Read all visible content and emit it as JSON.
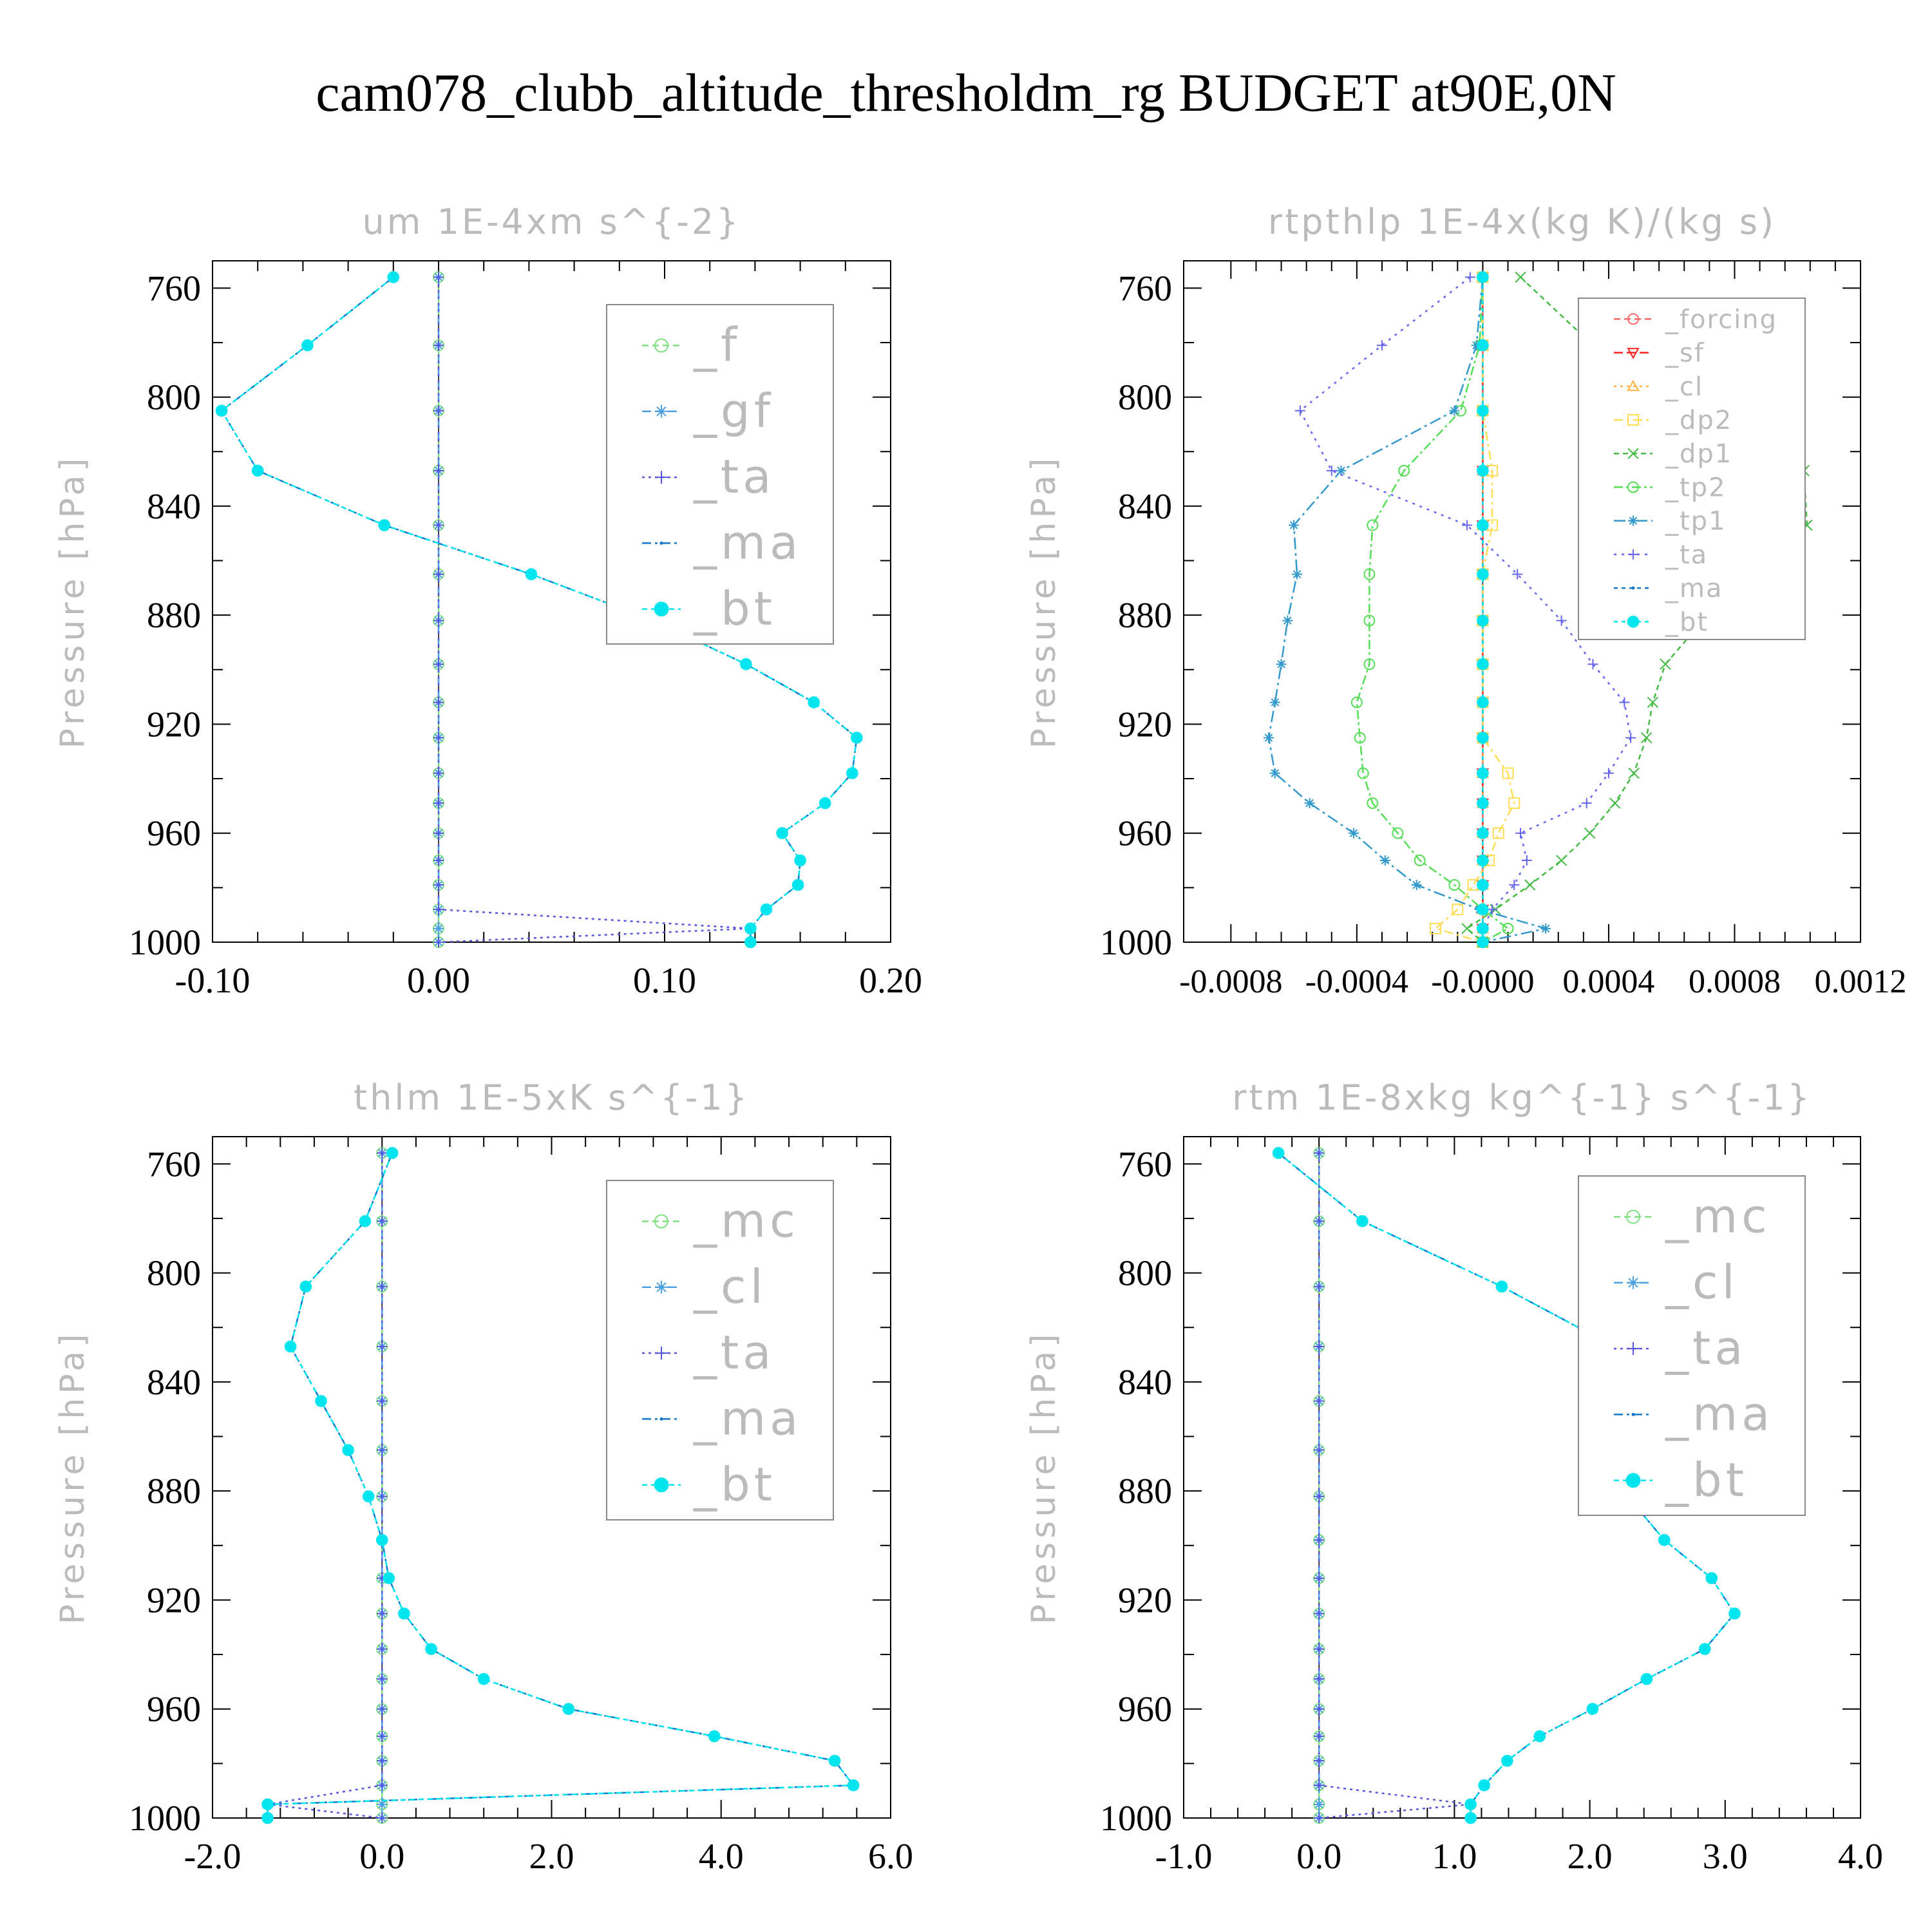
{
  "title": "cam078_clubb_altitude_thresholdm_rg  BUDGET at90E,0N",
  "chart_data": [
    {
      "type": "line",
      "title": "um  1E-4xm s^{-2}",
      "ylabel": "Pressure [hPa]",
      "xlim": [
        -0.1,
        0.2
      ],
      "ylim": [
        1000,
        750
      ],
      "xticks": [
        "-0.10",
        "0.00",
        "0.10",
        "0.20"
      ],
      "yticks": [
        "760",
        "800",
        "840",
        "880",
        "920",
        "960",
        "1000"
      ],
      "legend": [
        "_f",
        "_gf",
        "_ta",
        "_ma",
        "_bt"
      ],
      "p": [
        756,
        781,
        805,
        827,
        847,
        865,
        882,
        898,
        912,
        925,
        938,
        949,
        960,
        970,
        979,
        988,
        995,
        1000
      ],
      "series": [
        {
          "name": "_f",
          "color": "#7fe07f",
          "marker": "circle",
          "values": [
            0,
            0,
            0,
            0,
            0,
            0,
            0,
            0,
            0,
            0,
            0,
            0,
            0,
            0,
            0,
            0,
            0,
            0
          ]
        },
        {
          "name": "_gf",
          "color": "#4aa0e0",
          "marker": "asterisk",
          "values": [
            0,
            0,
            0,
            0,
            0,
            0,
            0,
            0,
            0,
            0,
            0,
            0,
            0,
            0,
            0,
            0,
            0,
            0
          ]
        },
        {
          "name": "_ta",
          "color": "#5555dd",
          "marker": "plus",
          "values": [
            0,
            0,
            0,
            0,
            0,
            0,
            0,
            0,
            0,
            0,
            0,
            0,
            0,
            0,
            0,
            0,
            0.138,
            0
          ]
        },
        {
          "name": "_ma",
          "color": "#1177cc",
          "marker": "dot",
          "values": [
            -0.02,
            -0.058,
            -0.096,
            -0.08,
            -0.024,
            0.041,
            0.095,
            0.136,
            0.166,
            0.185,
            0.183,
            0.171,
            0.152,
            0.16,
            0.159,
            0.145,
            0.138,
            0.138
          ]
        },
        {
          "name": "_bt",
          "color": "#00e5ee",
          "marker": "filled",
          "values": [
            -0.02,
            -0.058,
            -0.096,
            -0.08,
            -0.024,
            0.041,
            0.095,
            0.136,
            0.166,
            0.185,
            0.183,
            0.171,
            0.152,
            0.16,
            0.159,
            0.145,
            0.138,
            0.138
          ]
        }
      ]
    },
    {
      "type": "line",
      "title": "rtpthlp  1E-4x(kg K)/(kg s)",
      "ylabel": "Pressure [hPa]",
      "xlim": [
        -0.00095,
        0.0012
      ],
      "ylim": [
        1000,
        750
      ],
      "xticks": [
        "-0.0008",
        "-0.0004",
        "-0.0000",
        "0.0004",
        "0.0008",
        "0.0012"
      ],
      "yticks": [
        "760",
        "800",
        "840",
        "880",
        "920",
        "960",
        "1000"
      ],
      "legend": [
        "_forcing",
        "_sf",
        "_cl",
        "_dp2",
        "_dp1",
        "_tp2",
        "_tp1",
        "_ta",
        "_ma",
        "_bt"
      ],
      "p": [
        756,
        781,
        805,
        827,
        847,
        865,
        882,
        898,
        912,
        925,
        938,
        949,
        960,
        970,
        979,
        988,
        995,
        1000
      ],
      "series": [
        {
          "name": "_forcing",
          "color": "#ff6666",
          "marker": "circle",
          "values": [
            0,
            0,
            0,
            0,
            0,
            0,
            0,
            0,
            0,
            0,
            0,
            0,
            0,
            0,
            0,
            0,
            0,
            0
          ]
        },
        {
          "name": "_sf",
          "color": "#ff2222",
          "marker": "triangle-down",
          "values": [
            0,
            0,
            0,
            0,
            0,
            0,
            0,
            0,
            0,
            0,
            0,
            0,
            0,
            0,
            0,
            0,
            0,
            0
          ]
        },
        {
          "name": "_cl",
          "color": "#ffb347",
          "marker": "triangle-up",
          "values": [
            0,
            0,
            0,
            0,
            0,
            0,
            0,
            0,
            0,
            0,
            0,
            0,
            0,
            0,
            0,
            0,
            0,
            0
          ]
        },
        {
          "name": "_dp2",
          "color": "#ffdd55",
          "marker": "square",
          "values": [
            0,
            0,
            0,
            3e-05,
            3e-05,
            0,
            0,
            0,
            0,
            0,
            8e-05,
            0.0001,
            5e-05,
            2e-05,
            -3e-05,
            -8e-05,
            -0.00015,
            0
          ]
        },
        {
          "name": "_dp1",
          "color": "#44bb44",
          "marker": "x",
          "values": [
            0.00012,
            0.00035,
            0.0006,
            0.00102,
            0.00103,
            0.00085,
            0.0007,
            0.00058,
            0.00054,
            0.00052,
            0.00048,
            0.00042,
            0.00034,
            0.00025,
            0.00015,
            4e-05,
            -5e-05,
            0
          ]
        },
        {
          "name": "_tp2",
          "color": "#55dd55",
          "marker": "circle",
          "values": [
            0,
            -1e-05,
            -7e-05,
            -0.00025,
            -0.00035,
            -0.00036,
            -0.00036,
            -0.00036,
            -0.0004,
            -0.00039,
            -0.00038,
            -0.00035,
            -0.00027,
            -0.0002,
            -9e-05,
            0,
            8e-05,
            0
          ]
        },
        {
          "name": "_tp1",
          "color": "#3399cc",
          "marker": "asterisk",
          "values": [
            0,
            -2e-05,
            -9e-05,
            -0.00045,
            -0.0006,
            -0.00059,
            -0.00062,
            -0.00064,
            -0.00066,
            -0.00068,
            -0.00066,
            -0.00055,
            -0.00041,
            -0.00031,
            -0.00021,
            -1e-05,
            0.0002,
            0
          ]
        },
        {
          "name": "_ta",
          "color": "#6666ee",
          "marker": "plus",
          "values": [
            -4e-05,
            -0.00032,
            -0.00058,
            -0.00048,
            -5e-05,
            0.00011,
            0.00025,
            0.00035,
            0.00045,
            0.00047,
            0.0004,
            0.00033,
            0.00012,
            0.00014,
            0.0001,
            3e-05,
            0,
            0
          ]
        },
        {
          "name": "_ma",
          "color": "#1177cc",
          "marker": "dot",
          "values": [
            0,
            0,
            0,
            0,
            0,
            0,
            0,
            0,
            0,
            0,
            0,
            0,
            0,
            0,
            0,
            0,
            0,
            0
          ]
        },
        {
          "name": "_bt",
          "color": "#00e5ee",
          "marker": "filled",
          "values": [
            0,
            0,
            0,
            0,
            0,
            0,
            0,
            0,
            0,
            0,
            0,
            0,
            0,
            0,
            0,
            0,
            0,
            0
          ]
        }
      ]
    },
    {
      "type": "line",
      "title": "thlm  1E-5xK s^{-1}",
      "ylabel": "Pressure [hPa]",
      "xlim": [
        -2.0,
        6.0
      ],
      "ylim": [
        1000,
        750
      ],
      "xticks": [
        "-2.0",
        "0.0",
        "2.0",
        "4.0",
        "6.0"
      ],
      "yticks": [
        "760",
        "800",
        "840",
        "880",
        "920",
        "960",
        "1000"
      ],
      "legend": [
        "_mc",
        "_cl",
        "_ta",
        "_ma",
        "_bt"
      ],
      "p": [
        756,
        781,
        805,
        827,
        847,
        865,
        882,
        898,
        912,
        925,
        938,
        949,
        960,
        970,
        979,
        988,
        995,
        1000
      ],
      "series": [
        {
          "name": "_mc",
          "color": "#7fe07f",
          "marker": "circle",
          "values": [
            0,
            0,
            0,
            0,
            0,
            0,
            0,
            0,
            0,
            0,
            0,
            0,
            0,
            0,
            0,
            0,
            0,
            0
          ]
        },
        {
          "name": "_cl",
          "color": "#4aa0e0",
          "marker": "asterisk",
          "values": [
            0,
            0,
            0,
            0,
            0,
            0,
            0,
            0,
            0,
            0,
            0,
            0,
            0,
            0,
            0,
            0,
            0,
            0
          ]
        },
        {
          "name": "_ta",
          "color": "#5555dd",
          "marker": "plus",
          "values": [
            0,
            0,
            0,
            0,
            0,
            0,
            0,
            0,
            0,
            0,
            0,
            0,
            0,
            0,
            0,
            0,
            -1.35,
            0
          ]
        },
        {
          "name": "_ma",
          "color": "#1177cc",
          "marker": "dot",
          "values": [
            0.12,
            -0.2,
            -0.9,
            -1.08,
            -0.72,
            -0.4,
            -0.16,
            0,
            0.08,
            0.26,
            0.58,
            1.2,
            2.2,
            3.92,
            5.34,
            5.56,
            -1.35,
            -1.35
          ]
        },
        {
          "name": "_bt",
          "color": "#00e5ee",
          "marker": "filled",
          "values": [
            0.12,
            -0.2,
            -0.9,
            -1.08,
            -0.72,
            -0.4,
            -0.16,
            0,
            0.08,
            0.26,
            0.58,
            1.2,
            2.2,
            3.92,
            5.34,
            5.56,
            -1.35,
            -1.35
          ]
        }
      ]
    },
    {
      "type": "line",
      "title": "rtm  1E-8xkg kg^{-1} s^{-1}",
      "ylabel": "Pressure [hPa]",
      "xlim": [
        -1.0,
        4.0
      ],
      "ylim": [
        1000,
        750
      ],
      "xticks": [
        "-1.0",
        "0.0",
        "1.0",
        "2.0",
        "3.0",
        "4.0"
      ],
      "yticks": [
        "760",
        "800",
        "840",
        "880",
        "920",
        "960",
        "1000"
      ],
      "legend": [
        "_mc",
        "_cl",
        "_ta",
        "_ma",
        "_bt"
      ],
      "p": [
        756,
        781,
        805,
        827,
        847,
        865,
        882,
        898,
        912,
        925,
        938,
        949,
        960,
        970,
        979,
        988,
        995,
        1000
      ],
      "series": [
        {
          "name": "_mc",
          "color": "#7fe07f",
          "marker": "circle",
          "values": [
            0,
            0,
            0,
            0,
            0,
            0,
            0,
            0,
            0,
            0,
            0,
            0,
            0,
            0,
            0,
            0,
            0,
            0
          ]
        },
        {
          "name": "_cl",
          "color": "#4aa0e0",
          "marker": "asterisk",
          "values": [
            0,
            0,
            0,
            0,
            0,
            0,
            0,
            0,
            0,
            0,
            0,
            0,
            0,
            0,
            0,
            0,
            0,
            0
          ]
        },
        {
          "name": "_ta",
          "color": "#5555dd",
          "marker": "plus",
          "values": [
            0,
            0,
            0,
            0,
            0,
            0,
            0,
            0,
            0,
            0,
            0,
            0,
            0,
            0,
            0,
            0,
            1.12,
            0
          ]
        },
        {
          "name": "_ma",
          "color": "#1177cc",
          "marker": "dot",
          "values": [
            -0.3,
            0.32,
            1.35,
            2.18,
            2.2,
            2.18,
            2.28,
            2.55,
            2.9,
            3.07,
            2.85,
            2.42,
            2.02,
            1.63,
            1.39,
            1.22,
            1.12,
            1.12
          ]
        },
        {
          "name": "_bt",
          "color": "#00e5ee",
          "marker": "filled",
          "values": [
            -0.3,
            0.32,
            1.35,
            2.18,
            2.2,
            2.18,
            2.28,
            2.55,
            2.9,
            3.07,
            2.85,
            2.42,
            2.02,
            1.63,
            1.39,
            1.22,
            1.12,
            1.12
          ]
        }
      ]
    }
  ]
}
